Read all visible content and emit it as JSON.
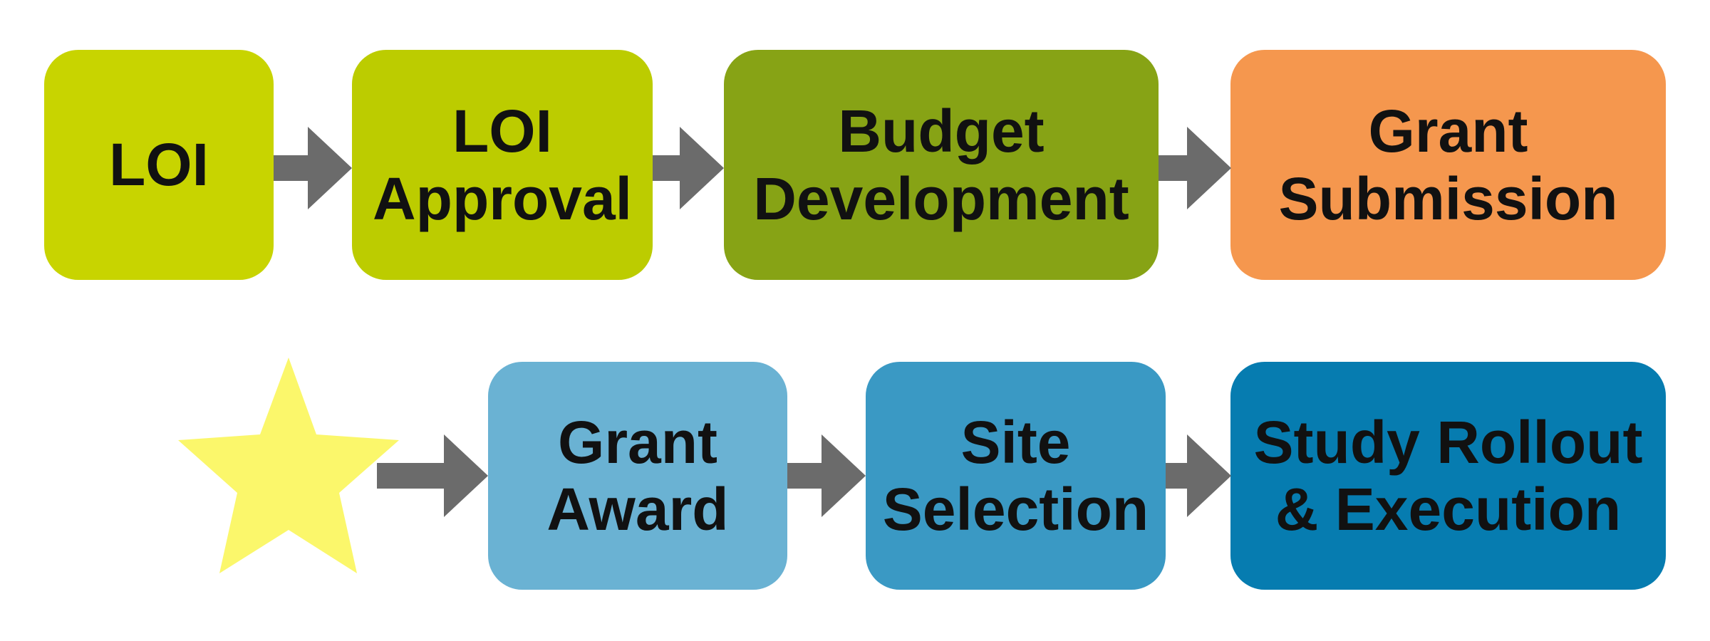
{
  "boxes": [
    {
      "id": "loi",
      "lines": [
        "LOI"
      ],
      "color": "#C8D400"
    },
    {
      "id": "loi-approval",
      "lines": [
        "LOI",
        "Approval"
      ],
      "color": "#BCCC00"
    },
    {
      "id": "budget-development",
      "lines": [
        "Budget",
        "Development"
      ],
      "color": "#87A315"
    },
    {
      "id": "grant-submission",
      "lines": [
        "Grant",
        "Submission"
      ],
      "color": "#F5974E"
    },
    {
      "id": "grant-award",
      "lines": [
        "Grant",
        "Award"
      ],
      "color": "#6AB2D3"
    },
    {
      "id": "site-selection",
      "lines": [
        "Site",
        "Selection"
      ],
      "color": "#3A99C4"
    },
    {
      "id": "study-rollout",
      "lines": [
        "Study Rollout",
        "& Execution"
      ],
      "color": "#067CB0"
    }
  ],
  "arrow_color": "#6B6B6B",
  "star_color": "#FBF76B"
}
